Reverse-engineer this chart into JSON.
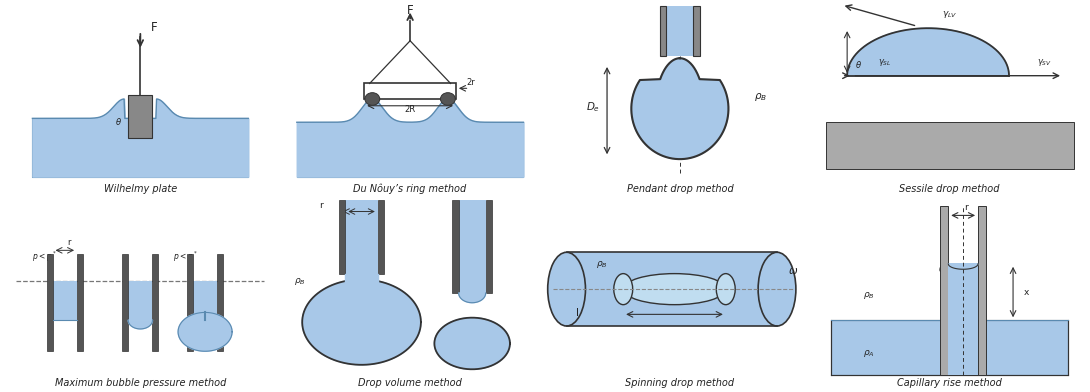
{
  "panels": [
    {
      "name": "Wilhelmy plate"
    },
    {
      "name": "Du Nôuy’s ring method"
    },
    {
      "name": "Pendant drop method"
    },
    {
      "name": "Sessile drop method"
    },
    {
      "name": "Maximum bubble pressure method"
    },
    {
      "name": "Drop volume method"
    },
    {
      "name": "Spinning drop method"
    },
    {
      "name": "Capillary rise method"
    }
  ],
  "lc": "#a8c8e8",
  "le": "#5a8ab0",
  "pc": "#909090",
  "dc": "#333333",
  "gc": "#999999",
  "bg": "#ffffff",
  "tc": "#222222",
  "lfs": 7.0,
  "afs": 7.5
}
